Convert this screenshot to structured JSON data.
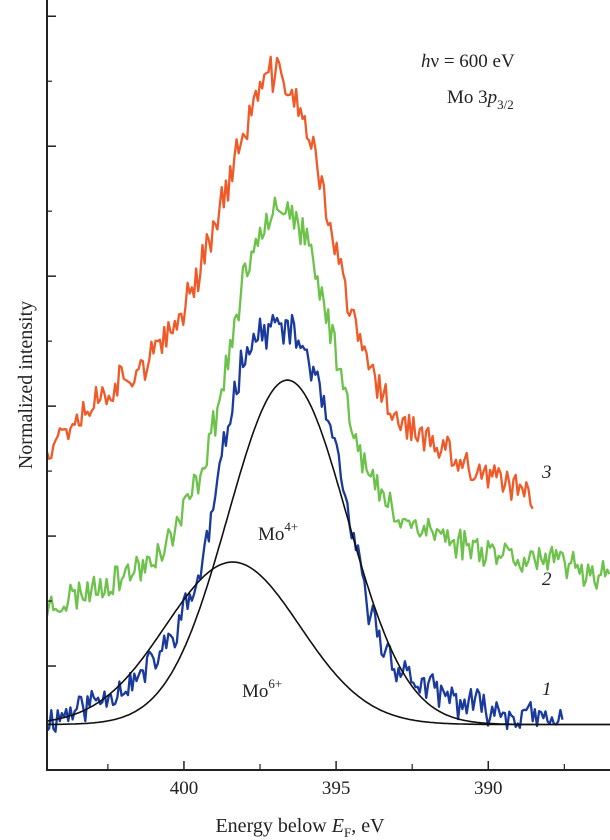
{
  "chart_data": {
    "type": "line",
    "title": "",
    "xlabel": {
      "prefix": "Energy below ",
      "sym": "E",
      "sub": "F",
      "suffix": ", eV"
    },
    "ylabel": "Normalized intensity",
    "xlim": [
      404.5,
      386.0
    ],
    "ylim": [
      -0.12,
      2.25
    ],
    "x_reversed": true,
    "x_ticks": [
      400,
      395,
      390
    ],
    "x_tick_labels": [
      "400",
      "395",
      "390"
    ],
    "x_minor_ticks": [
      402.5,
      397.5,
      392.5,
      387.5
    ],
    "y_ticks": [
      0.2,
      0.6,
      1.0,
      1.4,
      1.8,
      2.2
    ],
    "y_tick_labels": false,
    "grid": false,
    "annotations": {
      "hv": {
        "sym": "h",
        "nu": "ν",
        "rest": " = 600 eV"
      },
      "line": {
        "main": "Mo 3",
        "sym": "p",
        "sub": "3/2"
      },
      "mo4": {
        "base": "Mo",
        "sup": "4+"
      },
      "mo6": {
        "base": "Mo",
        "sup": "6+"
      }
    },
    "series": [
      {
        "name": "1",
        "color": "#1a3a9c",
        "x": [
          404.5,
          403,
          401.5,
          400.5,
          399.5,
          399,
          398.5,
          398,
          397.5,
          397,
          396.5,
          396,
          395.5,
          395,
          394.5,
          394,
          393.5,
          393,
          392.5,
          392,
          391.5,
          391,
          390.5,
          390,
          389.5,
          389,
          388.5,
          388,
          387.5
        ],
        "y": [
          0.03,
          0.09,
          0.16,
          0.27,
          0.47,
          0.7,
          0.97,
          1.18,
          1.22,
          1.25,
          1.23,
          1.17,
          1.03,
          0.85,
          0.62,
          0.4,
          0.27,
          0.2,
          0.16,
          0.13,
          0.11,
          0.09,
          0.08,
          0.07,
          0.06,
          0.05,
          0.04,
          0.03,
          0.02
        ],
        "noise": 0.045,
        "seed": 11
      },
      {
        "name": "2",
        "color": "#6cc24a",
        "x": [
          404.5,
          403.5,
          402.5,
          401.5,
          400.5,
          399.5,
          399,
          398.5,
          398,
          397.5,
          397,
          396.5,
          396,
          395.5,
          395,
          394.5,
          394,
          393.5,
          393,
          392.5,
          392,
          391.5,
          391,
          390.5,
          390,
          389,
          388,
          387,
          386
        ],
        "y": [
          0.38,
          0.42,
          0.46,
          0.5,
          0.58,
          0.78,
          0.95,
          1.17,
          1.4,
          1.55,
          1.63,
          1.6,
          1.51,
          1.35,
          1.17,
          0.96,
          0.8,
          0.72,
          0.67,
          0.64,
          0.62,
          0.6,
          0.58,
          0.57,
          0.56,
          0.54,
          0.52,
          0.5,
          0.48
        ],
        "noise": 0.045,
        "seed": 23
      },
      {
        "name": "3",
        "color": "#f05a28",
        "x": [
          404.5,
          403.5,
          402.5,
          401.5,
          400.5,
          399.5,
          399,
          398.5,
          398,
          397.5,
          397,
          396.5,
          396,
          395.5,
          395,
          394.5,
          394,
          393.5,
          393,
          392.5,
          392,
          391.5,
          391,
          390.5,
          390,
          389.5,
          389,
          388.5
        ],
        "y": [
          0.88,
          0.97,
          1.05,
          1.12,
          1.2,
          1.42,
          1.56,
          1.7,
          1.85,
          1.98,
          2.03,
          1.98,
          1.86,
          1.7,
          1.47,
          1.28,
          1.14,
          1.04,
          0.97,
          0.93,
          0.89,
          0.86,
          0.83,
          0.8,
          0.78,
          0.76,
          0.74,
          0.72
        ],
        "noise": 0.05,
        "seed": 37
      },
      {
        "name": "Mo4+",
        "color": "#111111",
        "smooth": true,
        "fit": {
          "center": 396.6,
          "amplitude": 1.06,
          "fwhm": 4.6,
          "baseline": 0.02
        }
      },
      {
        "name": "Mo6+",
        "color": "#111111",
        "smooth": true,
        "fit": {
          "center": 398.4,
          "amplitude": 0.5,
          "fwhm": 5.2,
          "baseline": 0.02
        }
      }
    ],
    "curve_labels": [
      "3",
      "2",
      "1"
    ],
    "label_colors": {
      "axis": "#222222",
      "text": "#222222"
    }
  }
}
